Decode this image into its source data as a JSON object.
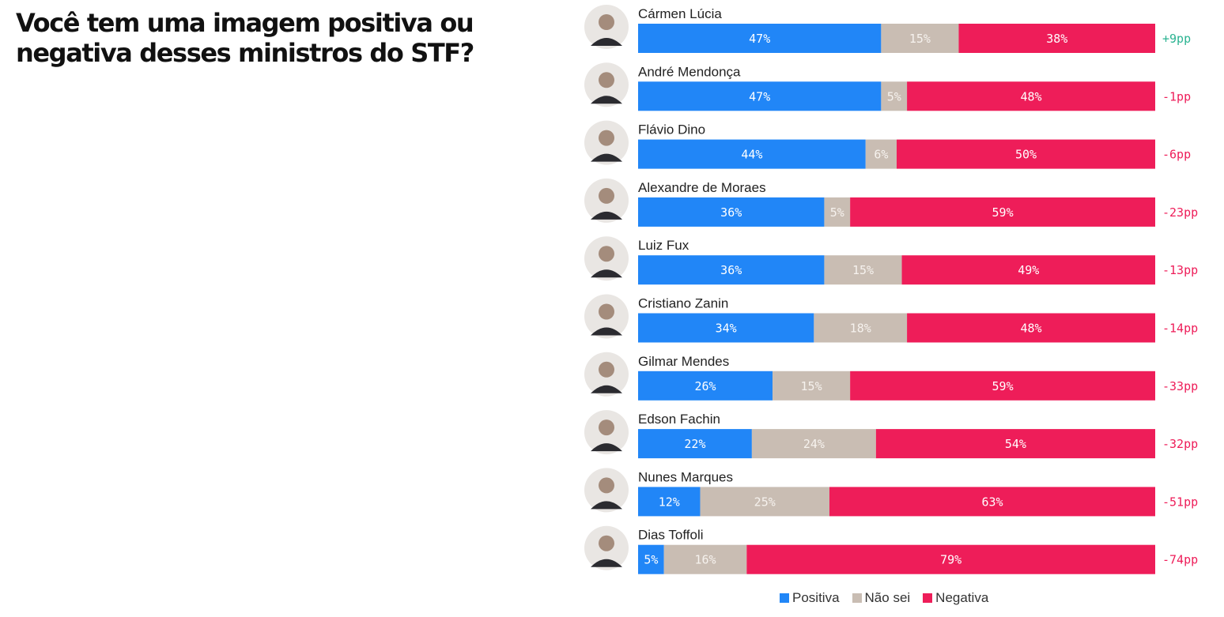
{
  "header": {
    "title_line1": "Você tem uma imagem positiva ou",
    "title_line2": "negativa desses ministros do STF?"
  },
  "colors": {
    "positive": "#2186f7",
    "unknown": "#c9bdb3",
    "negative": "#ee1d59",
    "diff_positive": "#2bb391",
    "diff_negative": "#ee1d59"
  },
  "chart_data": {
    "type": "bar",
    "orientation": "horizontal",
    "stacked": true,
    "categories": [
      "Cármen Lúcia",
      "André Mendonça",
      "Flávio Dino",
      "Alexandre de Moraes",
      "Luiz Fux",
      "Cristiano Zanin",
      "Gilmar Mendes",
      "Edson Fachin",
      "Nunes Marques",
      "Dias Toffoli"
    ],
    "series": [
      {
        "name": "Positiva",
        "color": "#2186f7",
        "values": [
          47,
          47,
          44,
          36,
          36,
          34,
          26,
          22,
          12,
          5
        ],
        "labels": [
          "47%",
          "47%",
          "44%",
          "36%",
          "36%",
          "34%",
          "26%",
          "22%",
          "12%",
          "5%"
        ]
      },
      {
        "name": "Não sei",
        "color": "#c9bdb3",
        "values": [
          15,
          5,
          6,
          5,
          15,
          18,
          15,
          24,
          25,
          16
        ],
        "labels": [
          "15%",
          "5%",
          "6%",
          "5%",
          "15%",
          "18%",
          "15%",
          "24%",
          "25%",
          "16%"
        ]
      },
      {
        "name": "Negativa",
        "color": "#ee1d59",
        "values": [
          38,
          48,
          50,
          59,
          49,
          48,
          59,
          54,
          63,
          79
        ],
        "labels": [
          "38%",
          "48%",
          "50%",
          "59%",
          "49%",
          "48%",
          "59%",
          "54%",
          "63%",
          "79%"
        ]
      }
    ],
    "net_labels": [
      "+9pp",
      "-1pp",
      "-6pp",
      "-23pp",
      "-13pp",
      "-14pp",
      "-33pp",
      "-32pp",
      "-51pp",
      "-74pp"
    ],
    "xlim": [
      0,
      100
    ],
    "legend": {
      "position": "bottom-center",
      "items": [
        "Positiva",
        "Não sei",
        "Negativa"
      ]
    },
    "grid": false
  }
}
